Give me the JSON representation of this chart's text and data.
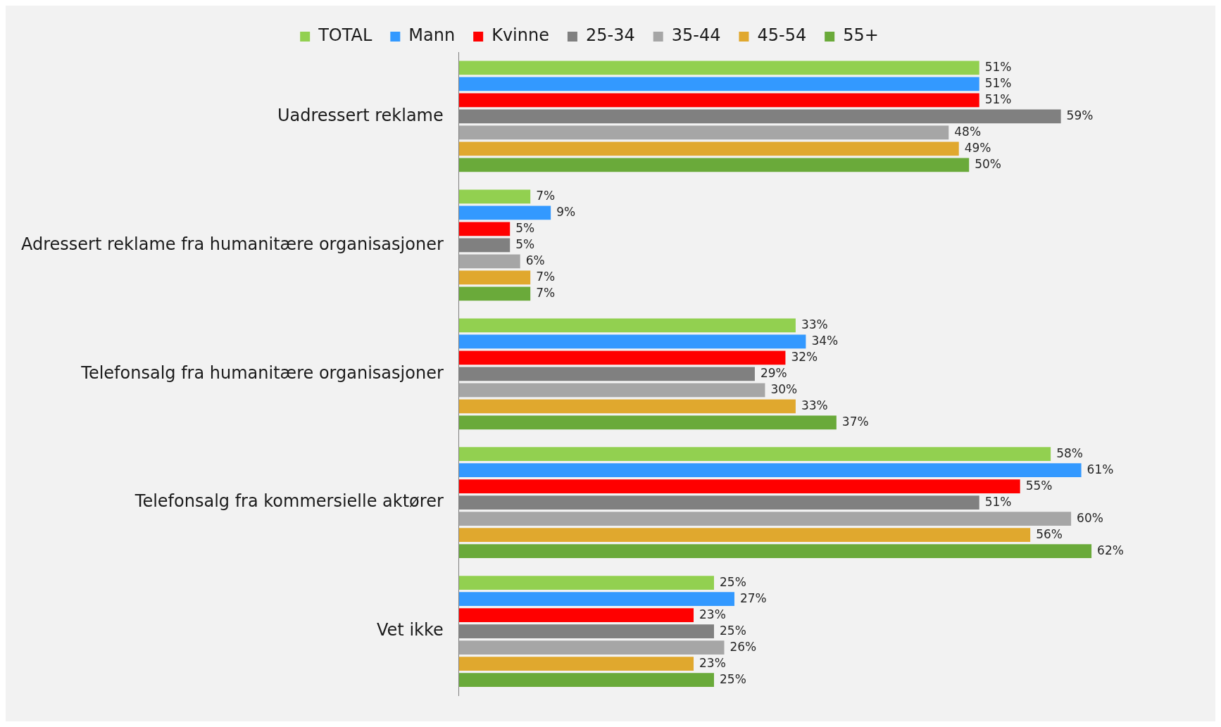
{
  "chart_data": {
    "type": "bar",
    "orientation": "horizontal",
    "legend": "top",
    "categories": [
      "Uadressert reklame",
      "Adressert reklame fra humanitære organisasjoner",
      "Telefonsalg fra humanitære organisasjoner",
      "Telefonsalg fra kommersielle aktører",
      "Vet ikke"
    ],
    "series": [
      {
        "name": "TOTAL",
        "color": "#92d050",
        "values": [
          51,
          7,
          33,
          58,
          25
        ],
        "value_labels": [
          "51%",
          "7%",
          "33%",
          "58%",
          "25%"
        ]
      },
      {
        "name": "Mann",
        "color": "#3399ff",
        "values": [
          51,
          9,
          34,
          61,
          27
        ],
        "value_labels": [
          "51%",
          "9%",
          "34%",
          "61%",
          "27%"
        ]
      },
      {
        "name": "Kvinne",
        "color": "#ff0000",
        "values": [
          51,
          5,
          32,
          55,
          23
        ],
        "value_labels": [
          "51%",
          "5%",
          "32%",
          "55%",
          "23%"
        ]
      },
      {
        "name": "25-34",
        "color": "#808080",
        "values": [
          59,
          5,
          29,
          51,
          25
        ],
        "value_labels": [
          "59%",
          "5%",
          "29%",
          "51%",
          "25%"
        ]
      },
      {
        "name": "35-44",
        "color": "#a6a6a6",
        "values": [
          48,
          6,
          30,
          60,
          26
        ],
        "value_labels": [
          "48%",
          "6%",
          "30%",
          "60%",
          "26%"
        ]
      },
      {
        "name": "45-54",
        "color": "#e0a82e",
        "values": [
          49,
          7,
          33,
          56,
          23
        ],
        "value_labels": [
          "49%",
          "7%",
          "33%",
          "56%",
          "23%"
        ]
      },
      {
        "name": "55+",
        "color": "#6aaa3a",
        "values": [
          50,
          7,
          37,
          62,
          25
        ],
        "value_labels": [
          "50%",
          "7%",
          "37%",
          "62%",
          "25%"
        ]
      }
    ]
  }
}
